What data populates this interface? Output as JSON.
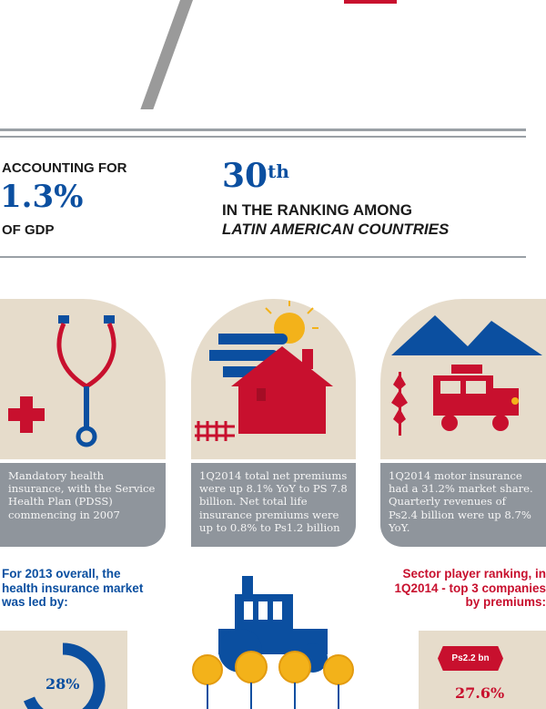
{
  "stats": {
    "gdp_accounting": "ACCOUNTING FOR",
    "gdp_percent": "1.3%",
    "gdp_of": "OF GDP",
    "rank_number": "30",
    "rank_suffix": "th",
    "rank_line1": "IN THE RANKING AMONG",
    "rank_line2": "LATIN AMERICAN COUNTRIES"
  },
  "panels": [
    {
      "icon": "stethoscope-icon",
      "caption": "Mandatory health insurance, with the Service Health Plan (PDSS) commencing in 2007"
    },
    {
      "icon": "house-icon",
      "caption": "1Q2014 total net premiums were up 8.1% YoY to PS 7.8 billion. Net total life insurance premiums were up to 0.8% to Ps1.2 billion"
    },
    {
      "icon": "jeep-icon",
      "caption": "1Q2014 motor insurance had a 31.2% market share. Quarterly revenues of Ps2.4 billion were up 8.7% YoY."
    }
  ],
  "bottom": {
    "left_note": "For 2013 overall, the health insurance market was led by:",
    "right_note": "Sector player ranking, in 1Q2014 - top 3 companies by premiums:",
    "left_percent": "28%",
    "right_badge": "Ps2.2 bn",
    "right_percent": "27.6%"
  },
  "colors": {
    "blue": "#0b4fa0",
    "red": "#c8102e",
    "beige": "#e6dccb",
    "grey": "#8f959c",
    "yellow": "#f3b21a"
  }
}
